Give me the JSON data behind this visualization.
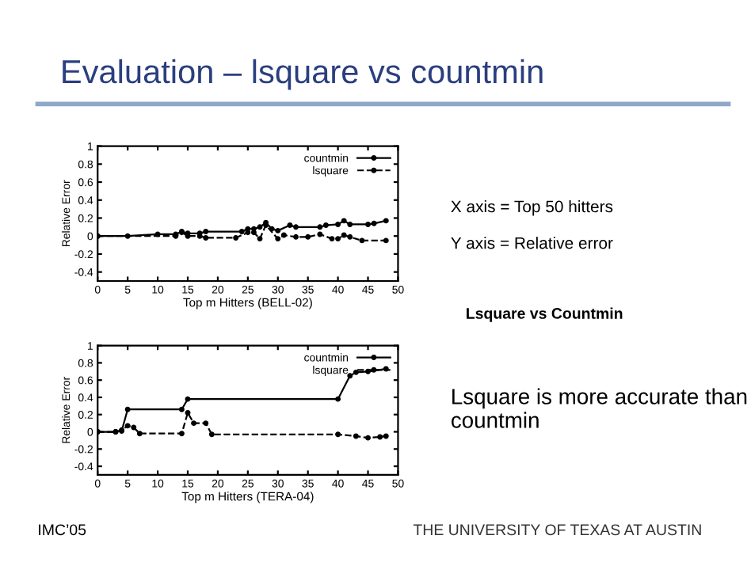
{
  "chart_data": [
    {
      "type": "other",
      "title": "Evaluation – lsquare vs countmin",
      "annotations": [
        "X axis = Top 50 hitters",
        "Y axis = Relative error",
        "Lsquare vs Countmin",
        "Lsquare is more accurate than countmin",
        "IMC’05",
        "THE UNIVERSITY OF TEXAS AT AUSTIN"
      ]
    },
    {
      "type": "line",
      "xlabel": "Top m Hitters (BELL-02)",
      "ylabel": "Relative Error",
      "xlim": [
        0,
        50
      ],
      "ylim": [
        -0.5,
        1
      ],
      "xticks": [
        0,
        5,
        10,
        15,
        20,
        25,
        30,
        35,
        40,
        45,
        50
      ],
      "yticks": [
        -0.4,
        -0.2,
        0,
        0.2,
        0.4,
        0.6,
        0.8,
        1
      ],
      "legend": "top right",
      "marker": "circle",
      "grid": false,
      "series": [
        {
          "name": "countmin",
          "color": "#000000",
          "line_style": "solid",
          "x": [
            0,
            5,
            10,
            13,
            14,
            15,
            17,
            18,
            24,
            25,
            26,
            27,
            28,
            29,
            30,
            32,
            33,
            37,
            38,
            40,
            41,
            42,
            45,
            46,
            48
          ],
          "values": [
            0,
            0,
            0.02,
            0.02,
            0.05,
            0.03,
            0.03,
            0.05,
            0.05,
            0.08,
            0.08,
            0.1,
            0.15,
            0.08,
            0.06,
            0.12,
            0.1,
            0.1,
            0.12,
            0.13,
            0.17,
            0.13,
            0.13,
            0.14,
            0.17
          ]
        },
        {
          "name": "lsquare",
          "color": "#000000",
          "line_style": "dashed",
          "x": [
            0,
            13,
            14,
            15,
            17,
            18,
            23,
            25,
            26,
            27,
            28,
            30,
            31,
            33,
            35,
            37,
            39,
            40,
            41,
            42,
            44,
            48
          ],
          "values": [
            0,
            0,
            0.04,
            0,
            0,
            -0.02,
            -0.02,
            0.04,
            0.04,
            -0.03,
            0.12,
            -0.03,
            0.01,
            -0.01,
            -0.01,
            0.02,
            -0.03,
            -0.03,
            0.01,
            -0.01,
            -0.05,
            -0.05
          ]
        }
      ]
    },
    {
      "type": "line",
      "xlabel": "Top m Hitters (TERA-04)",
      "ylabel": "Relative Error",
      "xlim": [
        0,
        50
      ],
      "ylim": [
        -0.5,
        1
      ],
      "xticks": [
        0,
        5,
        10,
        15,
        20,
        25,
        30,
        35,
        40,
        45,
        50
      ],
      "yticks": [
        -0.4,
        -0.2,
        0,
        0.2,
        0.4,
        0.6,
        0.8,
        1
      ],
      "legend": "top right",
      "marker": "circle",
      "grid": false,
      "series": [
        {
          "name": "countmin",
          "color": "#000000",
          "line_style": "solid",
          "x": [
            0,
            3,
            4,
            5,
            14,
            15,
            40,
            42,
            43,
            45,
            48
          ],
          "values": [
            0,
            0,
            0.01,
            0.26,
            0.26,
            0.38,
            0.38,
            0.65,
            0.69,
            0.7,
            0.73
          ]
        },
        {
          "name": "lsquare",
          "color": "#000000",
          "line_style": "dashed",
          "x": [
            0,
            3,
            4,
            5,
            6,
            7,
            14,
            15,
            16,
            18,
            19,
            40,
            43,
            45,
            47,
            48
          ],
          "values": [
            0,
            0,
            0.02,
            0.07,
            0.05,
            -0.02,
            -0.02,
            0.22,
            0.1,
            0.1,
            -0.03,
            -0.03,
            -0.05,
            -0.07,
            -0.06,
            -0.05
          ]
        }
      ]
    }
  ]
}
